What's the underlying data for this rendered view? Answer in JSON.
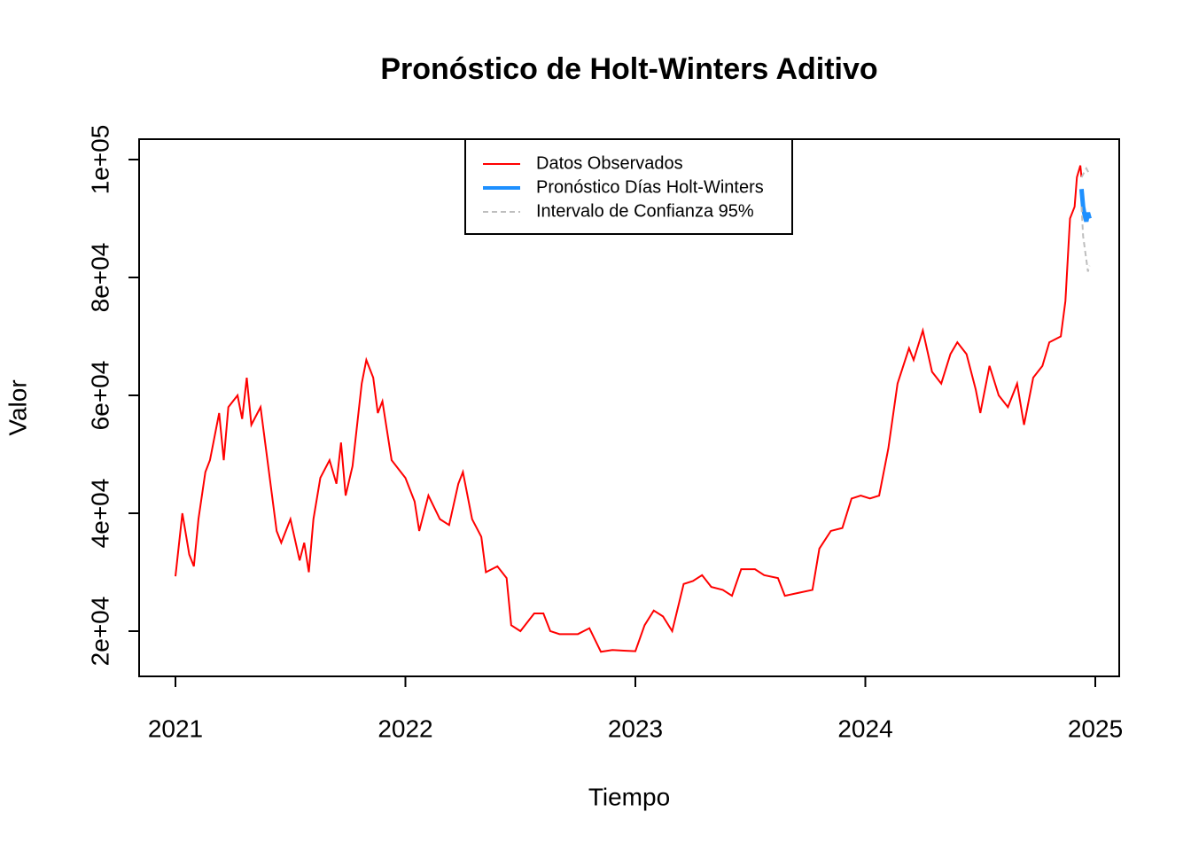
{
  "chart_data": {
    "type": "line",
    "title": "Pronóstico de Holt-Winters Aditivo",
    "xlabel": "Tiempo",
    "ylabel": "Valor",
    "xlim": [
      2020.842,
      2025.104
    ],
    "xticks": [
      2021,
      2022,
      2023,
      2024,
      2025
    ],
    "ylim": [
      12330,
      103460
    ],
    "yticks": [
      {
        "value": 20000,
        "label": "2e+04"
      },
      {
        "value": 40000,
        "label": "4e+04"
      },
      {
        "value": 60000,
        "label": "6e+04"
      },
      {
        "value": 80000,
        "label": "8e+04"
      },
      {
        "value": 100000,
        "label": "1e+05"
      }
    ],
    "legend": "top",
    "series": [
      {
        "name": "Datos Observados",
        "color": "#ff0000",
        "x": [
          2021.0,
          2021.03,
          2021.06,
          2021.08,
          2021.1,
          2021.13,
          2021.15,
          2021.19,
          2021.21,
          2021.23,
          2021.27,
          2021.29,
          2021.31,
          2021.33,
          2021.37,
          2021.4,
          2021.44,
          2021.46,
          2021.5,
          2021.54,
          2021.56,
          2021.58,
          2021.6,
          2021.63,
          2021.67,
          2021.7,
          2021.72,
          2021.74,
          2021.77,
          2021.79,
          2021.81,
          2021.83,
          2021.86,
          2021.88,
          2021.9,
          2021.94,
          2021.98,
          2022.0,
          2022.04,
          2022.06,
          2022.1,
          2022.15,
          2022.19,
          2022.23,
          2022.25,
          2022.29,
          2022.33,
          2022.35,
          2022.4,
          2022.44,
          2022.46,
          2022.5,
          2022.56,
          2022.6,
          2022.63,
          2022.67,
          2022.71,
          2022.75,
          2022.8,
          2022.85,
          2022.9,
          2022.95,
          2023.0,
          2023.04,
          2023.08,
          2023.12,
          2023.16,
          2023.21,
          2023.25,
          2023.29,
          2023.33,
          2023.38,
          2023.42,
          2023.46,
          2023.52,
          2023.56,
          2023.62,
          2023.65,
          2023.71,
          2023.77,
          2023.8,
          2023.85,
          2023.9,
          2023.94,
          2023.98,
          2024.02,
          2024.06,
          2024.1,
          2024.14,
          2024.19,
          2024.21,
          2024.25,
          2024.29,
          2024.33,
          2024.37,
          2024.4,
          2024.44,
          2024.48,
          2024.5,
          2024.54,
          2024.58,
          2024.62,
          2024.66,
          2024.69,
          2024.73,
          2024.77,
          2024.8,
          2024.85,
          2024.87,
          2024.89,
          2024.91,
          2024.92,
          2024.935,
          2024.94
        ],
        "values": [
          29300,
          40000,
          33000,
          31000,
          39000,
          47000,
          49000,
          57000,
          49000,
          58000,
          60000,
          56000,
          63000,
          55000,
          58000,
          49000,
          37000,
          35000,
          39000,
          32000,
          35000,
          30000,
          39000,
          46000,
          49000,
          45000,
          52000,
          43000,
          48000,
          55000,
          62000,
          66000,
          63000,
          57000,
          59000,
          49000,
          47000,
          46000,
          42000,
          37000,
          43000,
          39000,
          38000,
          45000,
          47000,
          39000,
          36000,
          30000,
          31000,
          29000,
          21000,
          20000,
          23000,
          23000,
          20000,
          19500,
          19500,
          19500,
          20500,
          16500,
          16800,
          16700,
          16600,
          21000,
          23500,
          22500,
          20000,
          28000,
          28500,
          29500,
          27500,
          27000,
          26000,
          30500,
          30500,
          29500,
          29000,
          26000,
          26500,
          27000,
          34000,
          37000,
          37500,
          42500,
          43000,
          42500,
          43000,
          51000,
          62000,
          68000,
          66000,
          71000,
          64000,
          62000,
          67000,
          69000,
          67000,
          61000,
          57000,
          65000,
          60000,
          58000,
          62000,
          55000,
          63000,
          65000,
          69000,
          70000,
          76000,
          90000,
          92000,
          97000,
          99000,
          97000
        ]
      },
      {
        "name": "Pronóstico Días Holt-Winters",
        "color": "#1e90ff",
        "x": [
          2024.94,
          2024.947,
          2024.954,
          2024.961,
          2024.968,
          2024.975
        ],
        "values": [
          95000,
          92000,
          90500,
          89500,
          91000,
          90000
        ]
      },
      {
        "name": "Intervalo de Confianza 95%",
        "color": "#bebebe",
        "dashed": true,
        "x": [
          2024.94,
          2024.947,
          2024.954,
          2024.961,
          2024.968,
          2024.975
        ],
        "upper": [
          97000,
          97500,
          98000,
          98500,
          98000,
          97500
        ],
        "lower": [
          92000,
          87000,
          85000,
          83000,
          81000,
          82000
        ]
      }
    ]
  }
}
